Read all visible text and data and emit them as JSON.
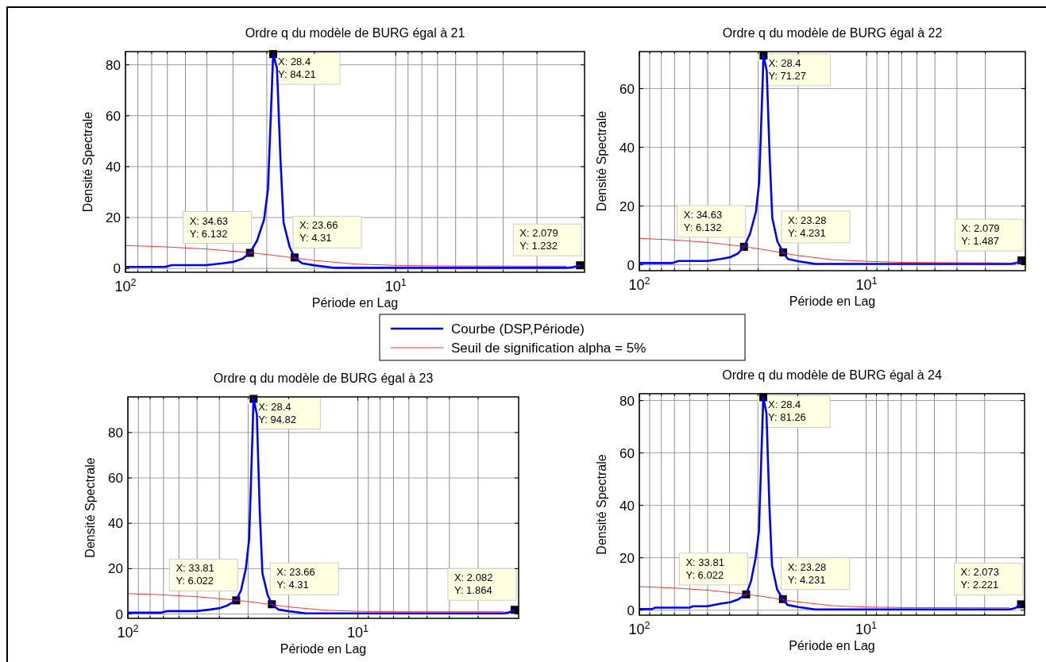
{
  "chart_data": [
    {
      "type": "line",
      "title": "Ordre q du modèle de BURG égal à 21",
      "xlabel": "Période en Lag",
      "ylabel": "Densité Spectrale",
      "log": "x",
      "grid": true,
      "legend": "bottom",
      "xlim": [
        100,
        2
      ],
      "ylim": [
        -1.5,
        85.2
      ],
      "xticks": [
        {
          "value": 100,
          "label": "10$^{2}$"
        },
        {
          "value": 90,
          "label": null
        },
        {
          "value": 80,
          "label": null
        },
        {
          "value": 70,
          "label": null
        },
        {
          "value": 60,
          "label": null
        },
        {
          "value": 50,
          "label": null
        },
        {
          "value": 40,
          "label": null
        },
        {
          "value": 30,
          "label": null
        },
        {
          "value": 20,
          "label": null
        },
        {
          "value": 10,
          "label": "10$^{1}$"
        },
        {
          "value": 9,
          "label": null
        },
        {
          "value": 8,
          "label": null
        },
        {
          "value": 7,
          "label": null
        },
        {
          "value": 6,
          "label": null
        },
        {
          "value": 5,
          "label": null
        },
        {
          "value": 4,
          "label": null
        },
        {
          "value": 3,
          "label": null
        }
      ],
      "yticks": [
        0,
        20,
        40,
        60,
        80
      ],
      "series": [
        {
          "name": "Courbe (DSP,Période)",
          "color": "#0000ff",
          "x": [
            100,
            71.6,
            67.3,
            50.2,
            43.8,
            39.8,
            36.9,
            34.63,
            32.6,
            30.7,
            29.7,
            28.4,
            27.5,
            26.7,
            26.0,
            24.7,
            23.66,
            22.2,
            19.9,
            16.8,
            10,
            2.33,
            2.2,
            2.079
          ],
          "values": [
            0.6,
            0.6,
            1.3,
            1.3,
            2.0,
            2.6,
            3.8,
            6.132,
            10.9,
            19.2,
            31,
            84.21,
            78.6,
            43,
            18,
            8.5,
            4.31,
            2,
            1.2,
            0.24,
            0.24,
            0.24,
            0.5,
            1.232
          ]
        },
        {
          "name": "Seuil de signification alpha = 5%",
          "color": "#ff0000",
          "x": [
            100,
            71.6,
            49.4,
            34.6,
            28.4,
            20.2,
            14,
            10,
            6.65,
            2.33
          ],
          "values": [
            9.0,
            8.5,
            7.6,
            6.2,
            5.2,
            3.2,
            1.7,
            1.2,
            1.0,
            0.9
          ]
        }
      ],
      "annotations": [
        {
          "text": "X: 34.63\nY: 6.132",
          "x": 34.63,
          "y": 6.132
        },
        {
          "text": "X: 28.4\nY: 84.21",
          "x": 28.4,
          "y": 84.21
        },
        {
          "text": "X: 2.079\nY: 1.232",
          "x": 2.079,
          "y": 1.232
        },
        {
          "text": "X: 23.66\nY: 4.31",
          "x": 23.66,
          "y": 4.31
        }
      ]
    },
    {
      "type": "line",
      "title": "Ordre q du modèle de BURG égal à 22",
      "xlabel": "Période en Lag",
      "ylabel": "Densité Spectrale",
      "log": "x",
      "grid": true,
      "xlim": [
        100,
        2
      ],
      "ylim": [
        -2,
        72.6
      ],
      "xticks": [
        {
          "value": 100,
          "label": "10$^{2}$"
        },
        {
          "value": 90,
          "label": null
        },
        {
          "value": 80,
          "label": null
        },
        {
          "value": 70,
          "label": null
        },
        {
          "value": 60,
          "label": null
        },
        {
          "value": 50,
          "label": null
        },
        {
          "value": 40,
          "label": null
        },
        {
          "value": 30,
          "label": null
        },
        {
          "value": 20,
          "label": null
        },
        {
          "value": 10,
          "label": "10$^{1}$"
        },
        {
          "value": 9,
          "label": null
        },
        {
          "value": 8,
          "label": null
        },
        {
          "value": 7,
          "label": null
        },
        {
          "value": 6,
          "label": null
        },
        {
          "value": 5,
          "label": null
        },
        {
          "value": 4,
          "label": null
        },
        {
          "value": 3,
          "label": null
        }
      ],
      "yticks": [
        0,
        20,
        40,
        60
      ],
      "series": [
        {
          "color": "#0000ff",
          "x": [
            100,
            71.6,
            67.3,
            50.2,
            43.8,
            39.8,
            36.9,
            34.63,
            32.6,
            30.7,
            29.7,
            28.4,
            27.5,
            26.7,
            26.0,
            24.7,
            23.28,
            22.2,
            19.9,
            16.8,
            10,
            2.33,
            2.2,
            2.079
          ],
          "values": [
            0.6,
            0.6,
            1.3,
            1.3,
            2.0,
            2.6,
            3.8,
            6.132,
            10.5,
            18,
            28,
            71.27,
            66,
            37,
            16,
            8,
            4.231,
            2,
            1.2,
            0.3,
            0.3,
            0.3,
            0.6,
            1.487
          ]
        },
        {
          "color": "#ff0000",
          "x": [
            100,
            71.6,
            49.4,
            34.6,
            28.4,
            20.2,
            14,
            10,
            6.65,
            2.079
          ],
          "values": [
            9.0,
            8.5,
            7.6,
            6.2,
            5.2,
            3.2,
            1.7,
            1.2,
            0.8,
            0.6
          ]
        }
      ],
      "annotations": [
        {
          "text": "X: 34.63\nY: 6.132",
          "x": 34.63,
          "y": 6.132
        },
        {
          "text": "X: 28.4\nY: 71.27",
          "x": 28.4,
          "y": 71.27
        },
        {
          "text": "X: 2.079\nY: 1.487",
          "x": 2.079,
          "y": 1.487
        },
        {
          "text": "X: 23.28\nY: 4.231",
          "x": 23.28,
          "y": 4.231
        }
      ]
    },
    {
      "type": "line",
      "title": "Ordre q du modèle de BURG égal à 23",
      "xlabel": "Période en Lag",
      "ylabel": "Densité Spectrale",
      "log": "x",
      "grid": true,
      "xlim": [
        100,
        2
      ],
      "ylim": [
        -1.9,
        95.7
      ],
      "xticks": [
        {
          "value": 100,
          "label": "10$^{2}$"
        },
        {
          "value": 90,
          "label": null
        },
        {
          "value": 80,
          "label": null
        },
        {
          "value": 70,
          "label": null
        },
        {
          "value": 60,
          "label": null
        },
        {
          "value": 50,
          "label": null
        },
        {
          "value": 40,
          "label": null
        },
        {
          "value": 30,
          "label": null
        },
        {
          "value": 20,
          "label": null
        },
        {
          "value": 10,
          "label": "10$^{1}$"
        },
        {
          "value": 9,
          "label": null
        },
        {
          "value": 8,
          "label": null
        },
        {
          "value": 7,
          "label": null
        },
        {
          "value": 6,
          "label": null
        },
        {
          "value": 5,
          "label": null
        },
        {
          "value": 4,
          "label": null
        },
        {
          "value": 3,
          "label": null
        }
      ],
      "yticks": [
        0,
        20,
        40,
        60,
        80
      ],
      "series": [
        {
          "color": "#0000ff",
          "x": [
            100,
            71.6,
            67.3,
            50.2,
            43.8,
            39.8,
            36.9,
            33.81,
            32.2,
            30.7,
            29.7,
            28.4,
            27.5,
            26.7,
            26.0,
            24.7,
            23.66,
            22.2,
            19.9,
            16.8,
            10,
            2.33,
            2.2,
            2.082
          ],
          "values": [
            0.6,
            0.6,
            1.3,
            1.3,
            2.0,
            2.6,
            3.8,
            6.022,
            10.5,
            20,
            33,
            94.82,
            88,
            45,
            18,
            8.5,
            4.31,
            2,
            1.2,
            0.3,
            0.3,
            0.3,
            0.7,
            1.864
          ]
        },
        {
          "color": "#ff0000",
          "x": [
            100,
            71.6,
            49.4,
            34.6,
            28.4,
            20.2,
            14,
            10,
            6.65,
            2.33
          ],
          "values": [
            9.0,
            8.5,
            7.6,
            6.2,
            5.2,
            3.2,
            1.7,
            1.2,
            1.0,
            1.0
          ]
        }
      ],
      "annotations": [
        {
          "text": "X: 33.81\nY: 6.022",
          "x": 33.81,
          "y": 6.022
        },
        {
          "text": "X: 28.4\nY: 94.82",
          "x": 28.4,
          "y": 94.82
        },
        {
          "text": "X: 2.082\nY: 1.864",
          "x": 2.082,
          "y": 1.864
        },
        {
          "text": "X: 23.66\nY: 4.31",
          "x": 23.66,
          "y": 4.31
        }
      ]
    },
    {
      "type": "line",
      "title": "Ordre q du modèle de BURG égal à 24",
      "xlabel": "Période en Lag",
      "ylabel": "Densité Spectrale",
      "log": "x",
      "grid": true,
      "xlim": [
        100,
        2
      ],
      "ylim": [
        -1.9,
        82.6
      ],
      "xticks": [
        {
          "value": 100,
          "label": "10$^{2}$"
        },
        {
          "value": 90,
          "label": null
        },
        {
          "value": 80,
          "label": null
        },
        {
          "value": 70,
          "label": null
        },
        {
          "value": 60,
          "label": null
        },
        {
          "value": 50,
          "label": null
        },
        {
          "value": 40,
          "label": null
        },
        {
          "value": 30,
          "label": null
        },
        {
          "value": 20,
          "label": null
        },
        {
          "value": 10,
          "label": "10$^{1}$"
        },
        {
          "value": 9,
          "label": null
        },
        {
          "value": 8,
          "label": null
        },
        {
          "value": 7,
          "label": null
        },
        {
          "value": 6,
          "label": null
        },
        {
          "value": 5,
          "label": null
        },
        {
          "value": 4,
          "label": null
        },
        {
          "value": 3,
          "label": null
        }
      ],
      "yticks": [
        0,
        20,
        40,
        60,
        80
      ],
      "series": [
        {
          "color": "#0000ff",
          "x": [
            100,
            88,
            85,
            60,
            58,
            50.2,
            43.8,
            39.8,
            36.9,
            33.81,
            32.2,
            30.7,
            29.7,
            28.4,
            27.5,
            26.7,
            26.0,
            24.7,
            23.28,
            22.2,
            19.9,
            16.8,
            10,
            2.33,
            2.2,
            2.073
          ],
          "values": [
            0.4,
            0.4,
            1.0,
            1.0,
            1.5,
            1.5,
            2.5,
            3.0,
            4.0,
            6.022,
            11,
            20,
            30,
            81.26,
            75,
            40,
            17,
            8,
            4.231,
            2,
            1.2,
            0.3,
            0.3,
            0.3,
            0.8,
            2.221
          ]
        },
        {
          "color": "#ff0000",
          "x": [
            100,
            71.6,
            49.4,
            34.6,
            28.4,
            20.2,
            14,
            10,
            6.65,
            2.33
          ],
          "values": [
            9.0,
            8.5,
            7.6,
            6.2,
            5.2,
            3.2,
            1.7,
            1.2,
            1.0,
            0.9
          ]
        }
      ],
      "annotations": [
        {
          "text": "X: 33.81\nY: 6.022",
          "x": 33.81,
          "y": 6.022
        },
        {
          "text": "X: 28.4\nY: 81.26",
          "x": 28.4,
          "y": 81.26
        },
        {
          "text": "X: 2.073\nY: 2.221",
          "x": 2.073,
          "y": 2.221
        },
        {
          "text": "X: 23.28\nY: 4.231",
          "x": 23.28,
          "y": 4.231
        }
      ]
    }
  ]
}
